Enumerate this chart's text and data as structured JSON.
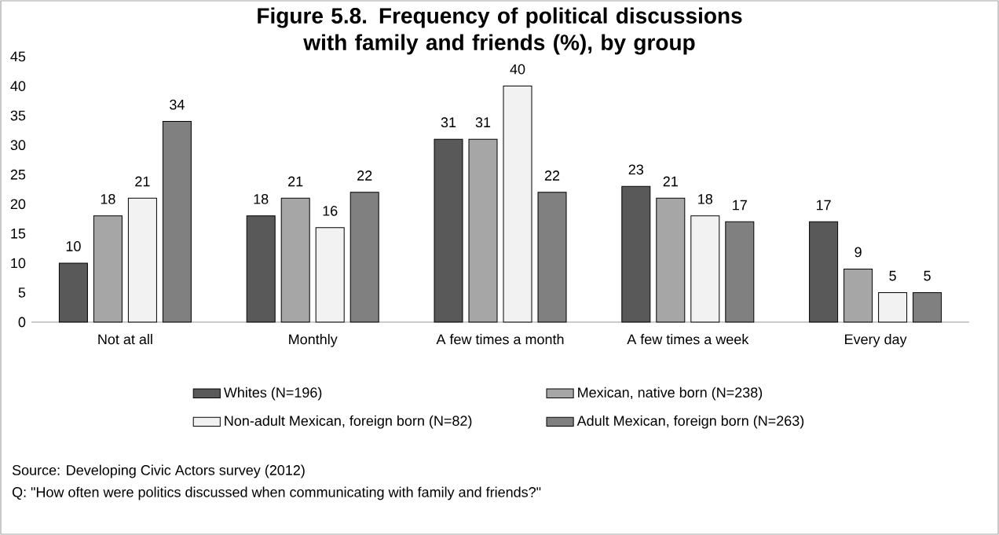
{
  "chart_data": {
    "type": "bar",
    "title": "Figure 5.8. Frequency of political discussions with family and friends (%), by group",
    "categories": [
      "Not at all",
      "Monthly",
      "A few times a month",
      "A few times a week",
      "Every day"
    ],
    "series": [
      {
        "name": "Whites (N=196)",
        "color": "#595959",
        "values": [
          10,
          18,
          31,
          23,
          17
        ]
      },
      {
        "name": "Mexican, native born (N=238)",
        "color": "#a6a6a6",
        "values": [
          18,
          21,
          31,
          21,
          9
        ]
      },
      {
        "name": "Non-adult Mexican, foreign born (N=82)",
        "color": "#f2f2f2",
        "values": [
          21,
          16,
          40,
          18,
          5
        ]
      },
      {
        "name": "Adult Mexican, foreign born (N=263)",
        "color": "#808080",
        "values": [
          34,
          22,
          22,
          17,
          5
        ]
      }
    ],
    "ylim": [
      0,
      45
    ],
    "yticks": [
      0,
      5,
      10,
      15,
      20,
      25,
      30,
      35,
      40,
      45
    ],
    "data_labels": true,
    "legend": "bottom",
    "grid": false,
    "annotations": [
      "Source: Developing Civic Actors survey (2012)",
      "Q: \"How often were politics discussed when communicating with family and friends?\""
    ]
  }
}
